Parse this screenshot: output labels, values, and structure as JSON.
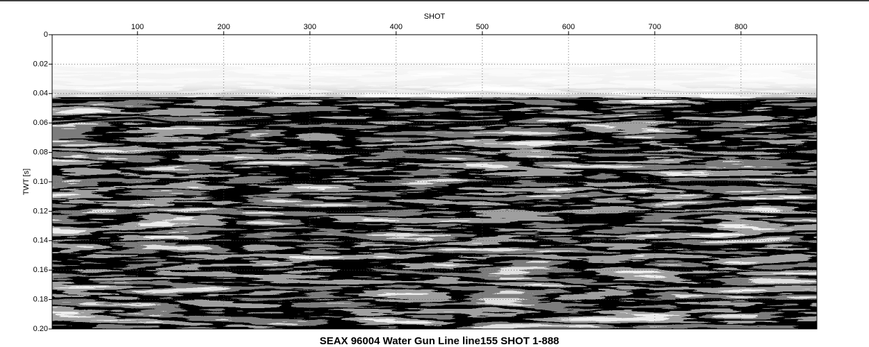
{
  "chart_data": {
    "type": "seismic",
    "title": "SEAX 96004 Water Gun Line line155 SHOT 1-888",
    "xlabel": "SHOT",
    "ylabel": "TWT [s]",
    "xlim": [
      1,
      888
    ],
    "xticks": [
      100,
      200,
      300,
      400,
      500,
      600,
      700,
      800
    ],
    "ylim": [
      0,
      0.2
    ],
    "yticks": [
      0,
      0.02,
      0.04,
      0.06,
      0.08,
      {
        "value": 0.1,
        "label": "0.10"
      },
      0.12,
      0.14,
      0.16,
      0.18,
      {
        "value": 0.2,
        "label": "0.20"
      }
    ],
    "y_inverted": true,
    "x_axis_position": "top",
    "grid": true
  }
}
